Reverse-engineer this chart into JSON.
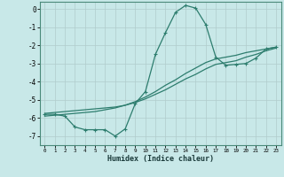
{
  "background_color": "#c8e8e8",
  "grid_color": "#b0cccc",
  "line_color": "#2d7d6e",
  "xlabel": "Humidex (Indice chaleur)",
  "ylim": [
    -7.5,
    0.4
  ],
  "xlim": [
    -0.5,
    23.5
  ],
  "yticks": [
    0,
    -1,
    -2,
    -3,
    -4,
    -5,
    -6,
    -7
  ],
  "xticks": [
    0,
    1,
    2,
    3,
    4,
    5,
    6,
    7,
    8,
    9,
    10,
    11,
    12,
    13,
    14,
    15,
    16,
    17,
    18,
    19,
    20,
    21,
    22,
    23
  ],
  "curve1_x": [
    0,
    1,
    2,
    3,
    4,
    5,
    6,
    7,
    8,
    9,
    10,
    11,
    12,
    13,
    14,
    15,
    16,
    17,
    18,
    19,
    20,
    21,
    22,
    23
  ],
  "curve1_y": [
    -5.8,
    -5.8,
    -5.9,
    -6.5,
    -6.65,
    -6.65,
    -6.65,
    -7.0,
    -6.6,
    -5.2,
    -4.55,
    -2.5,
    -1.3,
    -0.18,
    0.2,
    0.05,
    -0.85,
    -2.65,
    -3.1,
    -3.05,
    -3.0,
    -2.7,
    -2.2,
    -2.1
  ],
  "curve2_x": [
    0,
    1,
    2,
    3,
    4,
    5,
    6,
    7,
    8,
    9,
    10,
    11,
    12,
    13,
    14,
    15,
    16,
    17,
    18,
    19,
    20,
    21,
    22,
    23
  ],
  "curve2_y": [
    -5.75,
    -5.7,
    -5.65,
    -5.6,
    -5.55,
    -5.5,
    -5.45,
    -5.4,
    -5.3,
    -5.15,
    -4.95,
    -4.7,
    -4.45,
    -4.15,
    -3.85,
    -3.6,
    -3.3,
    -3.05,
    -2.95,
    -2.85,
    -2.65,
    -2.5,
    -2.3,
    -2.15
  ],
  "curve3_x": [
    0,
    1,
    2,
    3,
    4,
    5,
    6,
    7,
    8,
    9,
    10,
    11,
    12,
    13,
    14,
    15,
    16,
    17,
    18,
    19,
    20,
    21,
    22,
    23
  ],
  "curve3_y": [
    -5.9,
    -5.85,
    -5.8,
    -5.75,
    -5.7,
    -5.65,
    -5.55,
    -5.45,
    -5.3,
    -5.1,
    -4.85,
    -4.55,
    -4.2,
    -3.9,
    -3.55,
    -3.25,
    -2.95,
    -2.75,
    -2.65,
    -2.55,
    -2.4,
    -2.3,
    -2.2,
    -2.1
  ]
}
